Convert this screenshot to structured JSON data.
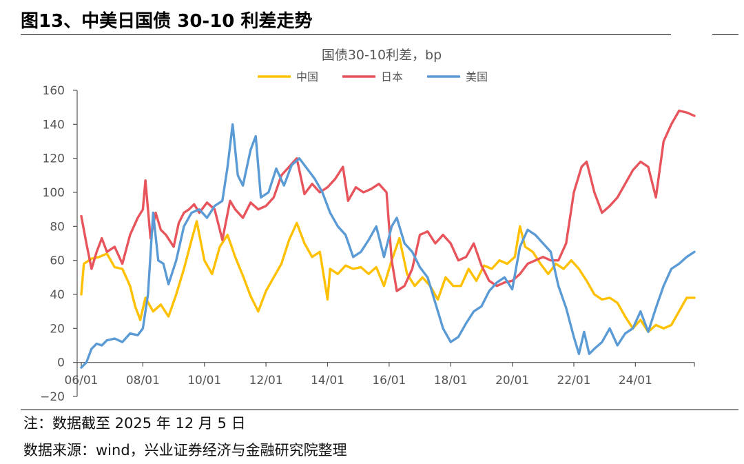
{
  "header": {
    "title": "图13、中美日国债 30-10 利差走势"
  },
  "footer": {
    "note": "注：数据截至 2025 年 12 月 5 日",
    "source": "数据来源：wind，兴业证券经济与金融研究院整理"
  },
  "chart_data": {
    "type": "line",
    "title": "国债30-10利差，bp",
    "xlabel": "",
    "ylabel": "",
    "x_tick_labels": [
      "06/01",
      "08/01",
      "10/01",
      "12/01",
      "14/01",
      "16/01",
      "18/01",
      "20/01",
      "22/01",
      "24/01"
    ],
    "xlim": [
      "2006-01",
      "2025-12"
    ],
    "ylim": [
      -20,
      160
    ],
    "y_ticks": [
      -20,
      0,
      20,
      40,
      60,
      80,
      100,
      120,
      140,
      160
    ],
    "grid": false,
    "legend_position": "top-center",
    "series": [
      {
        "name": "中国",
        "color": "#FFC000",
        "points": [
          [
            "2006-01",
            40
          ],
          [
            "2006-02",
            58
          ],
          [
            "2006-05",
            61
          ],
          [
            "2006-08",
            62
          ],
          [
            "2006-11",
            64
          ],
          [
            "2007-02",
            56
          ],
          [
            "2007-05",
            55
          ],
          [
            "2007-08",
            45
          ],
          [
            "2007-10",
            33
          ],
          [
            "2007-12",
            25
          ],
          [
            "2008-02",
            38
          ],
          [
            "2008-05",
            30
          ],
          [
            "2008-08",
            34
          ],
          [
            "2008-11",
            27
          ],
          [
            "2009-02",
            40
          ],
          [
            "2009-05",
            55
          ],
          [
            "2009-08",
            72
          ],
          [
            "2009-10",
            83
          ],
          [
            "2010-01",
            60
          ],
          [
            "2010-04",
            52
          ],
          [
            "2010-07",
            68
          ],
          [
            "2010-10",
            75
          ],
          [
            "2011-01",
            62
          ],
          [
            "2011-04",
            51
          ],
          [
            "2011-07",
            39
          ],
          [
            "2011-10",
            30
          ],
          [
            "2012-01",
            42
          ],
          [
            "2012-04",
            50
          ],
          [
            "2012-07",
            58
          ],
          [
            "2012-10",
            72
          ],
          [
            "2013-01",
            82
          ],
          [
            "2013-04",
            70
          ],
          [
            "2013-07",
            62
          ],
          [
            "2013-10",
            65
          ],
          [
            "2014-01",
            37
          ],
          [
            "2014-02",
            55
          ],
          [
            "2014-05",
            52
          ],
          [
            "2014-08",
            57
          ],
          [
            "2014-11",
            55
          ],
          [
            "2015-02",
            56
          ],
          [
            "2015-05",
            52
          ],
          [
            "2015-08",
            56
          ],
          [
            "2015-11",
            45
          ],
          [
            "2016-02",
            60
          ],
          [
            "2016-05",
            73
          ],
          [
            "2016-08",
            52
          ],
          [
            "2016-11",
            45
          ],
          [
            "2017-02",
            50
          ],
          [
            "2017-05",
            45
          ],
          [
            "2017-08",
            37
          ],
          [
            "2017-11",
            50
          ],
          [
            "2018-02",
            45
          ],
          [
            "2018-05",
            45
          ],
          [
            "2018-08",
            55
          ],
          [
            "2018-11",
            48
          ],
          [
            "2019-02",
            57
          ],
          [
            "2019-05",
            55
          ],
          [
            "2019-08",
            60
          ],
          [
            "2019-11",
            58
          ],
          [
            "2020-02",
            62
          ],
          [
            "2020-04",
            80
          ],
          [
            "2020-06",
            68
          ],
          [
            "2020-09",
            65
          ],
          [
            "2020-12",
            58
          ],
          [
            "2021-03",
            52
          ],
          [
            "2021-06",
            58
          ],
          [
            "2021-09",
            55
          ],
          [
            "2021-12",
            60
          ],
          [
            "2022-03",
            55
          ],
          [
            "2022-06",
            48
          ],
          [
            "2022-09",
            40
          ],
          [
            "2022-12",
            37
          ],
          [
            "2023-03",
            38
          ],
          [
            "2023-06",
            35
          ],
          [
            "2023-09",
            27
          ],
          [
            "2023-12",
            20
          ],
          [
            "2024-03",
            25
          ],
          [
            "2024-06",
            18
          ],
          [
            "2024-09",
            22
          ],
          [
            "2024-12",
            20
          ],
          [
            "2025-03",
            22
          ],
          [
            "2025-06",
            30
          ],
          [
            "2025-09",
            38
          ],
          [
            "2025-12",
            38
          ]
        ]
      },
      {
        "name": "日本",
        "color": "#E8545B",
        "points": [
          [
            "2006-01",
            86
          ],
          [
            "2006-03",
            70
          ],
          [
            "2006-05",
            55
          ],
          [
            "2006-07",
            65
          ],
          [
            "2006-09",
            73
          ],
          [
            "2006-11",
            65
          ],
          [
            "2007-02",
            68
          ],
          [
            "2007-05",
            58
          ],
          [
            "2007-08",
            75
          ],
          [
            "2007-11",
            85
          ],
          [
            "2008-01",
            90
          ],
          [
            "2008-02",
            107
          ],
          [
            "2008-04",
            73
          ],
          [
            "2008-06",
            88
          ],
          [
            "2008-08",
            78
          ],
          [
            "2008-10",
            75
          ],
          [
            "2009-01",
            68
          ],
          [
            "2009-03",
            82
          ],
          [
            "2009-05",
            88
          ],
          [
            "2009-07",
            90
          ],
          [
            "2009-09",
            93
          ],
          [
            "2009-11",
            88
          ],
          [
            "2010-02",
            94
          ],
          [
            "2010-05",
            90
          ],
          [
            "2010-08",
            72
          ],
          [
            "2010-11",
            95
          ],
          [
            "2011-01",
            90
          ],
          [
            "2011-04",
            85
          ],
          [
            "2011-07",
            94
          ],
          [
            "2011-10",
            90
          ],
          [
            "2012-01",
            92
          ],
          [
            "2012-04",
            97
          ],
          [
            "2012-07",
            110
          ],
          [
            "2012-10",
            115
          ],
          [
            "2013-01",
            120
          ],
          [
            "2013-04",
            99
          ],
          [
            "2013-07",
            105
          ],
          [
            "2013-10",
            100
          ],
          [
            "2014-01",
            103
          ],
          [
            "2014-04",
            108
          ],
          [
            "2014-07",
            115
          ],
          [
            "2014-09",
            95
          ],
          [
            "2014-12",
            103
          ],
          [
            "2015-03",
            100
          ],
          [
            "2015-06",
            102
          ],
          [
            "2015-09",
            105
          ],
          [
            "2015-12",
            100
          ],
          [
            "2016-02",
            60
          ],
          [
            "2016-04",
            42
          ],
          [
            "2016-07",
            45
          ],
          [
            "2016-10",
            55
          ],
          [
            "2017-01",
            75
          ],
          [
            "2017-04",
            77
          ],
          [
            "2017-07",
            70
          ],
          [
            "2017-10",
            75
          ],
          [
            "2018-01",
            70
          ],
          [
            "2018-04",
            60
          ],
          [
            "2018-07",
            62
          ],
          [
            "2018-10",
            70
          ],
          [
            "2019-01",
            57
          ],
          [
            "2019-04",
            48
          ],
          [
            "2019-07",
            45
          ],
          [
            "2019-10",
            47
          ],
          [
            "2020-01",
            48
          ],
          [
            "2020-04",
            52
          ],
          [
            "2020-07",
            58
          ],
          [
            "2020-10",
            60
          ],
          [
            "2021-01",
            62
          ],
          [
            "2021-04",
            60
          ],
          [
            "2021-07",
            60
          ],
          [
            "2021-10",
            70
          ],
          [
            "2022-01",
            100
          ],
          [
            "2022-04",
            115
          ],
          [
            "2022-06",
            118
          ],
          [
            "2022-09",
            100
          ],
          [
            "2022-12",
            88
          ],
          [
            "2023-03",
            92
          ],
          [
            "2023-06",
            97
          ],
          [
            "2023-09",
            105
          ],
          [
            "2023-12",
            113
          ],
          [
            "2024-03",
            118
          ],
          [
            "2024-06",
            115
          ],
          [
            "2024-09",
            97
          ],
          [
            "2024-12",
            130
          ],
          [
            "2025-03",
            140
          ],
          [
            "2025-06",
            148
          ],
          [
            "2025-09",
            147
          ],
          [
            "2025-12",
            145
          ]
        ]
      },
      {
        "name": "美国",
        "color": "#5B9BD5",
        "points": [
          [
            "2006-01",
            -3
          ],
          [
            "2006-03",
            0
          ],
          [
            "2006-05",
            8
          ],
          [
            "2006-07",
            11
          ],
          [
            "2006-09",
            10
          ],
          [
            "2006-11",
            13
          ],
          [
            "2007-02",
            14
          ],
          [
            "2007-05",
            12
          ],
          [
            "2007-08",
            17
          ],
          [
            "2007-11",
            16
          ],
          [
            "2008-01",
            20
          ],
          [
            "2008-03",
            40
          ],
          [
            "2008-05",
            88
          ],
          [
            "2008-07",
            60
          ],
          [
            "2008-09",
            58
          ],
          [
            "2008-11",
            46
          ],
          [
            "2009-02",
            60
          ],
          [
            "2009-05",
            80
          ],
          [
            "2009-08",
            88
          ],
          [
            "2009-11",
            90
          ],
          [
            "2010-02",
            85
          ],
          [
            "2010-05",
            92
          ],
          [
            "2010-08",
            95
          ],
          [
            "2010-10",
            115
          ],
          [
            "2010-12",
            140
          ],
          [
            "2011-02",
            110
          ],
          [
            "2011-04",
            104
          ],
          [
            "2011-07",
            125
          ],
          [
            "2011-09",
            133
          ],
          [
            "2011-11",
            97
          ],
          [
            "2012-02",
            100
          ],
          [
            "2012-05",
            114
          ],
          [
            "2012-08",
            104
          ],
          [
            "2012-11",
            116
          ],
          [
            "2013-02",
            120
          ],
          [
            "2013-05",
            114
          ],
          [
            "2013-08",
            108
          ],
          [
            "2013-11",
            100
          ],
          [
            "2014-02",
            88
          ],
          [
            "2014-05",
            80
          ],
          [
            "2014-08",
            75
          ],
          [
            "2014-11",
            62
          ],
          [
            "2015-02",
            65
          ],
          [
            "2015-05",
            72
          ],
          [
            "2015-08",
            80
          ],
          [
            "2015-11",
            62
          ],
          [
            "2016-02",
            80
          ],
          [
            "2016-04",
            85
          ],
          [
            "2016-07",
            70
          ],
          [
            "2016-10",
            65
          ],
          [
            "2017-01",
            56
          ],
          [
            "2017-04",
            50
          ],
          [
            "2017-07",
            35
          ],
          [
            "2017-10",
            20
          ],
          [
            "2018-01",
            12
          ],
          [
            "2018-04",
            15
          ],
          [
            "2018-07",
            23
          ],
          [
            "2018-10",
            30
          ],
          [
            "2019-01",
            33
          ],
          [
            "2019-04",
            42
          ],
          [
            "2019-07",
            47
          ],
          [
            "2019-10",
            50
          ],
          [
            "2020-01",
            43
          ],
          [
            "2020-04",
            68
          ],
          [
            "2020-07",
            78
          ],
          [
            "2020-10",
            75
          ],
          [
            "2021-01",
            70
          ],
          [
            "2021-04",
            65
          ],
          [
            "2021-07",
            45
          ],
          [
            "2021-10",
            32
          ],
          [
            "2022-01",
            15
          ],
          [
            "2022-03",
            5
          ],
          [
            "2022-05",
            18
          ],
          [
            "2022-07",
            5
          ],
          [
            "2022-09",
            8
          ],
          [
            "2022-12",
            12
          ],
          [
            "2023-03",
            20
          ],
          [
            "2023-06",
            10
          ],
          [
            "2023-09",
            17
          ],
          [
            "2023-12",
            20
          ],
          [
            "2024-03",
            30
          ],
          [
            "2024-06",
            18
          ],
          [
            "2024-09",
            32
          ],
          [
            "2024-12",
            45
          ],
          [
            "2025-03",
            55
          ],
          [
            "2025-06",
            58
          ],
          [
            "2025-09",
            62
          ],
          [
            "2025-12",
            65
          ]
        ]
      }
    ]
  }
}
